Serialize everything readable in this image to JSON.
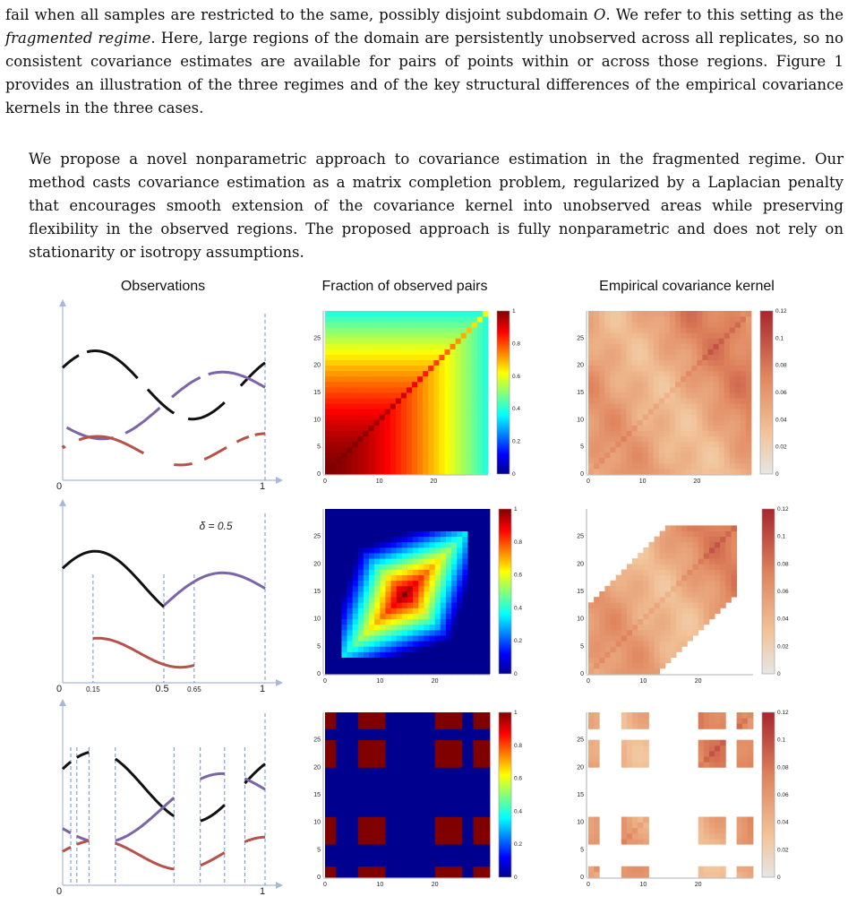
{
  "paragraph1": {
    "a": "fail when all samples are restricted to the same, possibly disjoint subdomain ",
    "sym": "O",
    "b": ". We refer to this setting as the ",
    "em": "fragmented regime",
    "c": ". Here, large regions of the domain are persistently unobserved across all replicates, so no consistent covariance estimates are available for pairs of points within or across those regions. Figure 1 provides an illustration of the three regimes and of the key structural differences of the empirical covariance kernels in the three cases."
  },
  "paragraph2": "We propose a novel nonparametric approach to covariance estimation in the fragmented regime. Our method casts covariance estimation as a matrix completion problem, regularized by a Laplacian penalty that encourages smooth extension of the covariance kernel into unobserved areas while preserving flexibility in the observed regions. The proposed approach is fully nonparametric and does not rely on stationarity or isotropy assumptions.",
  "figure": {
    "column_titles": [
      "Observations",
      "Fraction of observed pairs",
      "Empirical covariance kernel"
    ],
    "obs_axis": {
      "x_start": "0",
      "x_end": "1"
    },
    "obs_row2": {
      "delta_label": "δ = 0.5",
      "ticks": [
        "0.15",
        "0.5",
        "0.65"
      ]
    },
    "matrix_axis": {
      "x_ticks": [
        "0",
        "10",
        "20"
      ],
      "y_ticks": [
        "0",
        "5",
        "10",
        "15",
        "20",
        "25"
      ]
    },
    "fraction_colorbar": [
      "1",
      "0.8",
      "0.6",
      "0.4",
      "0.2",
      "0"
    ],
    "covariance_colorbar": [
      "0.12",
      "0.1",
      "0.08",
      "0.06",
      "0.04",
      "0.02",
      "0"
    ],
    "colors": {
      "black_curve": "#111111",
      "purple_curve": "#7b64a8",
      "red_curve": "#b5524a",
      "guide": "#6b8fd6",
      "axis": "#aab8d8"
    }
  }
}
